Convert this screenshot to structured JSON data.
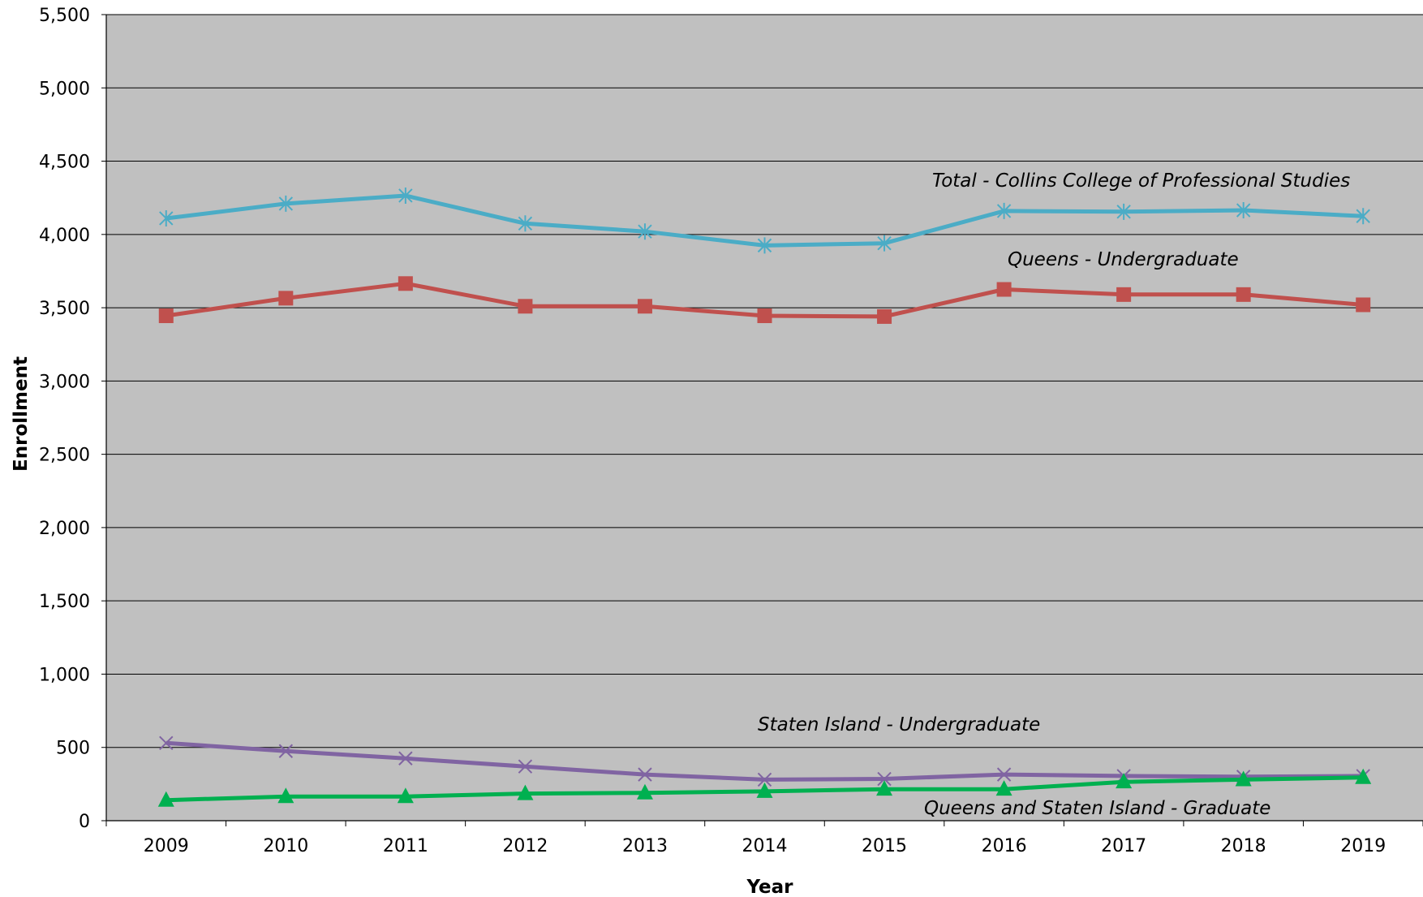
{
  "chart_data": {
    "type": "line",
    "title": "",
    "xlabel": "Year",
    "ylabel": "Enrollment",
    "x": [
      "2009",
      "2010",
      "2011",
      "2012",
      "2013",
      "2014",
      "2015",
      "2016",
      "2017",
      "2018",
      "2019"
    ],
    "ylim": [
      0,
      5500
    ],
    "yticks": [
      0,
      500,
      1000,
      1500,
      2000,
      2500,
      3000,
      3500,
      4000,
      4500,
      5000,
      5500
    ],
    "ytick_labels": [
      "0",
      "500",
      "1,000",
      "1,500",
      "2,000",
      "2,500",
      "3,000",
      "3,500",
      "4,000",
      "4,500",
      "5,000",
      "5,500"
    ],
    "grid": true,
    "plot_background": "#c0c0c0",
    "series": [
      {
        "name": "Total - Collins College of Professional Studies",
        "color": "#4bacc6",
        "marker": "asterisk",
        "values": [
          4110,
          4210,
          4265,
          4075,
          4020,
          3925,
          3940,
          4160,
          4155,
          4165,
          4125
        ]
      },
      {
        "name": "Queens - Undergraduate",
        "color": "#c0504d",
        "marker": "square",
        "values": [
          3445,
          3565,
          3665,
          3510,
          3510,
          3445,
          3440,
          3625,
          3590,
          3590,
          3520
        ]
      },
      {
        "name": "Staten Island - Undergraduate",
        "color": "#8064a2",
        "marker": "x",
        "values": [
          530,
          475,
          425,
          370,
          315,
          280,
          285,
          315,
          305,
          300,
          305
        ]
      },
      {
        "name": "Queens and Staten Island - Graduate",
        "color": "#00b050",
        "marker": "triangle",
        "values": [
          140,
          165,
          165,
          185,
          190,
          200,
          215,
          215,
          265,
          280,
          295
        ]
      }
    ]
  }
}
